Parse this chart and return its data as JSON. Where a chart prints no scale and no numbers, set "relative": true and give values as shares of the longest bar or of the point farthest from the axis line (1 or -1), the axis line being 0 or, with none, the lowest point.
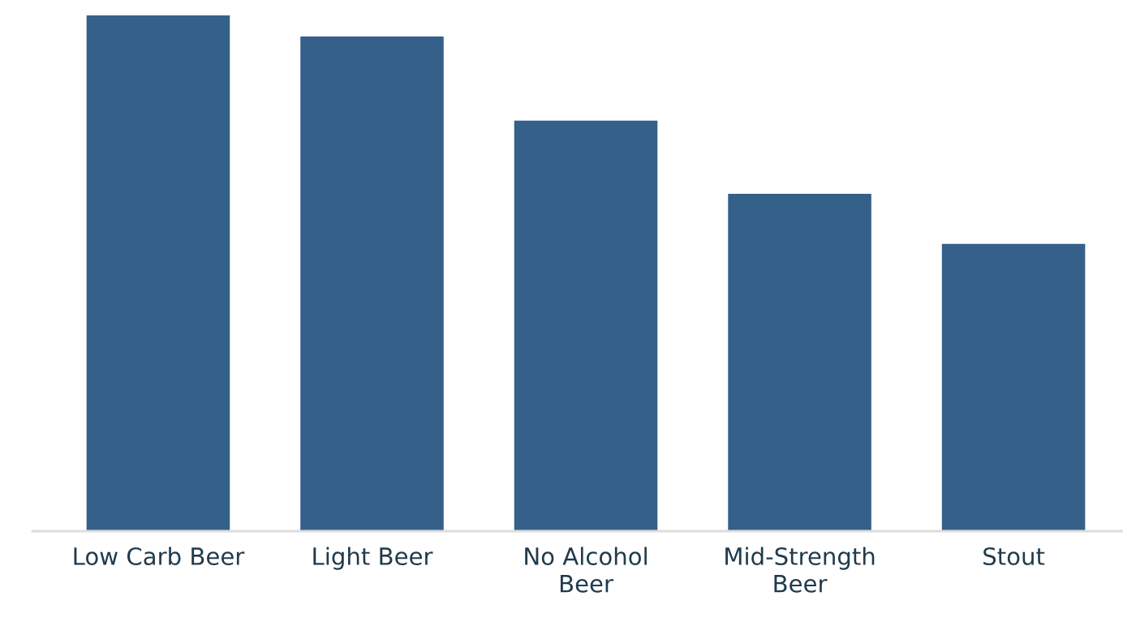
{
  "chart_data": {
    "type": "bar",
    "relative": true,
    "categories": [
      "Low Carb Beer",
      "Light Beer",
      "No Alcohol\nBeer",
      "Mid-Strength\nBeer",
      "Stout"
    ],
    "values": [
      1,
      0.959,
      0.796,
      0.654,
      0.557
    ],
    "color": "#35608a",
    "grid": false,
    "legend": false
  }
}
